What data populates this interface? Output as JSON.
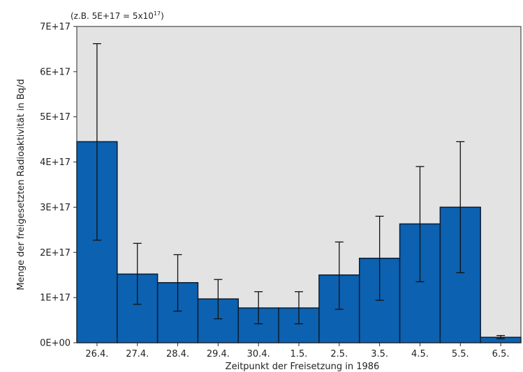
{
  "chart_data": {
    "type": "bar",
    "title": "",
    "annotation_prefix": "(z.B. 5E+17 = 5x10",
    "annotation_exponent": "17",
    "annotation_suffix": ")",
    "xlabel": "Zeitpunkt der Freisetzung in 1986",
    "ylabel": "Menge der freigesetzten Radioaktivität in Bq/d",
    "ylim": [
      0,
      7e+17
    ],
    "y_ticks": [
      {
        "value": 0,
        "label": "0E+00"
      },
      {
        "value": 1e+17,
        "label": "1E+17"
      },
      {
        "value": 2e+17,
        "label": "2E+17"
      },
      {
        "value": 3e+17,
        "label": "3E+17"
      },
      {
        "value": 4e+17,
        "label": "4E+17"
      },
      {
        "value": 5e+17,
        "label": "5E+17"
      },
      {
        "value": 6e+17,
        "label": "6E+17"
      },
      {
        "value": 7e+17,
        "label": "7E+17"
      }
    ],
    "categories": [
      "26.4.",
      "27.4.",
      "28.4.",
      "29.4.",
      "30.4.",
      "1.5.",
      "2.5.",
      "3.5.",
      "4.5.",
      "5.5.",
      "6.5."
    ],
    "values": [
      4.45e+17,
      1.52e+17,
      1.33e+17,
      9.7e+16,
      7.7e+16,
      7.7e+16,
      1.5e+17,
      1.87e+17,
      2.63e+17,
      3e+17,
      1.2e+16
    ],
    "error_low": [
      2.27e+17,
      8.5e+16,
      7e+16,
      5.3e+16,
      4.2e+16,
      4.2e+16,
      7.4e+16,
      9.4e+16,
      1.35e+17,
      1.55e+17,
      9000000000000000.0
    ],
    "error_high": [
      6.62e+17,
      2.2e+17,
      1.95e+17,
      1.4e+17,
      1.13e+17,
      1.13e+17,
      2.23e+17,
      2.8e+17,
      3.9e+17,
      4.45e+17,
      1.6e+16
    ],
    "grid": false,
    "colors": {
      "bar_fill": "#0c61b0",
      "bar_stroke": "#0b1d33",
      "plot_background": "#e3e3e3",
      "frame": "#2a2a2a",
      "error_bar": "#111111"
    }
  }
}
